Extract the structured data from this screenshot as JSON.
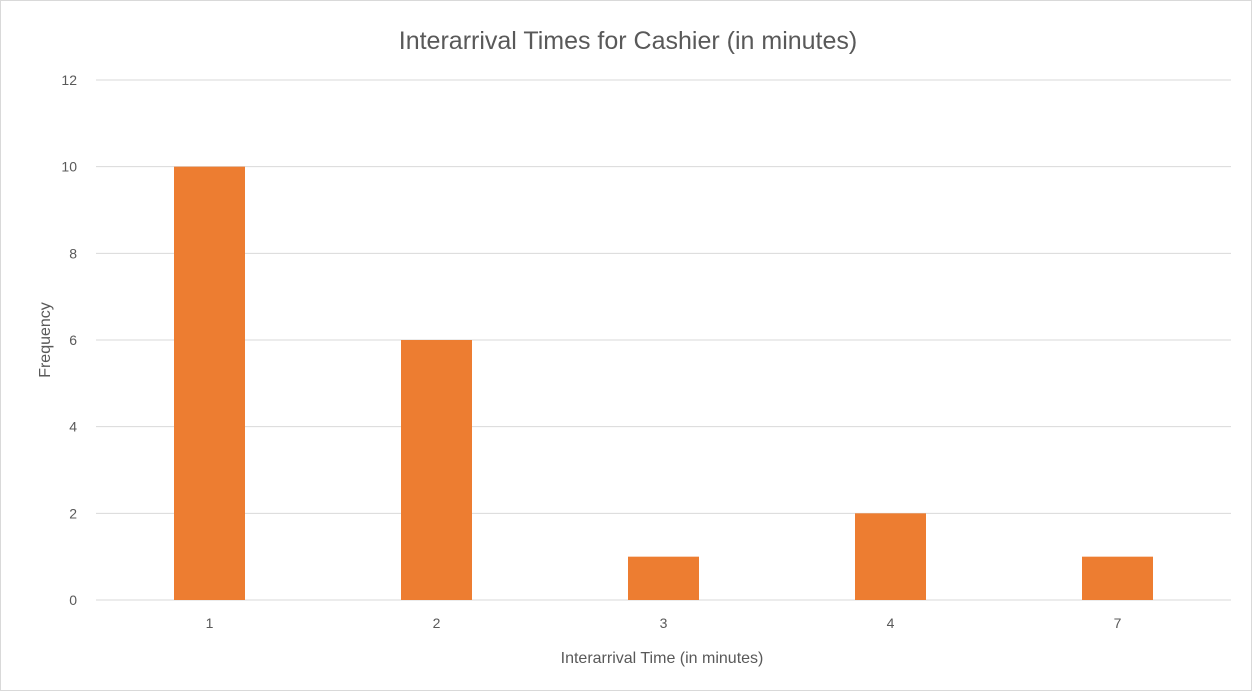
{
  "chart_data": {
    "type": "bar",
    "title": "Interarrival Times for Cashier (in minutes)",
    "xlabel": "Interarrival Time (in minutes)",
    "ylabel": "Frequency",
    "categories": [
      "1",
      "2",
      "3",
      "4",
      "7"
    ],
    "values": [
      10,
      6,
      1,
      2,
      1
    ],
    "ylim": [
      0,
      12
    ],
    "yticks": [
      "0",
      "2",
      "4",
      "6",
      "8",
      "10",
      "12"
    ],
    "grid": true,
    "legend": "none",
    "bar_color": "#ED7D31",
    "gridline_color": "#D9D9D9"
  }
}
